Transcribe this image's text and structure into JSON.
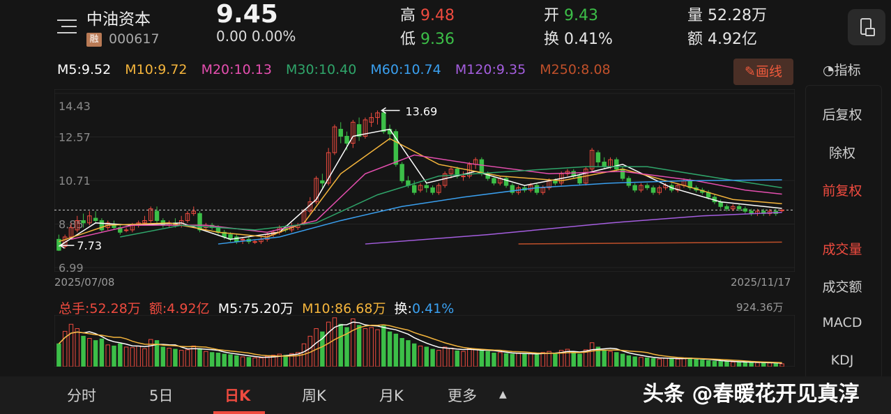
{
  "header": {
    "stock_name": "中油资本",
    "margin_badge": "融",
    "code": "000617",
    "price": "9.45",
    "change": "0.00  0.00%",
    "high_label": "高",
    "high_value": "9.48",
    "low_label": "低",
    "low_value": "9.36",
    "open_label": "开",
    "open_value": "9.43",
    "turnover_label": "换",
    "turnover_value": "0.41%",
    "volume_label": "量",
    "volume_value": "52.28万",
    "amount_label": "额",
    "amount_value": "4.92亿",
    "icon": "phone-landscape-icon",
    "menu_icon": "menu-icon"
  },
  "ma_legend": {
    "m5": "M5:9.52",
    "m10": "M10:9.72",
    "m20": "M20:10.13",
    "m30": "M30:10.40",
    "m60": "M60:10.74",
    "m120": "M120:9.35",
    "m250": "M250:8.08"
  },
  "draw_button": "画线",
  "indicator_label": "指标",
  "side_menu": {
    "items": [
      "后复权",
      "除权",
      "前复权",
      "成交量",
      "成交额",
      "MACD",
      "KDJ"
    ],
    "active": [
      "前复权",
      "成交量"
    ]
  },
  "volume_legend": {
    "total": "总手:52.28万",
    "amount": "额:4.92亿",
    "m5": "M5:75.20万",
    "m10": "M10:86.68万",
    "turnover_label": "换:",
    "turnover_value": "0.41%",
    "max": "924.36万"
  },
  "bottom_tabs": [
    "分时",
    "5日",
    "日K",
    "周K",
    "月K",
    "更多"
  ],
  "active_tab": "日K",
  "watermark": "头条 @春暖花开见真淳",
  "colors": {
    "up": "#ef4b3f",
    "down": "#3cbf48",
    "m5": "#ffffff",
    "m10": "#f5b53c",
    "m20": "#e64fb0",
    "m30": "#2fa56a",
    "m60": "#3aa0f0",
    "m120": "#a55ee0",
    "m250": "#c0502a"
  },
  "chart_data": {
    "type": "candlestick",
    "x_start": "2025/07/08",
    "x_end": "2025/11/17",
    "y_ticks": [
      "14.43",
      "12.57",
      "10.71",
      "8.85",
      "6.99"
    ],
    "ylim": [
      6.99,
      14.43
    ],
    "annotations": {
      "max": "13.69",
      "min": "7.73"
    },
    "last_close": 9.45,
    "ohlc": [
      [
        8.2,
        7.73,
        8.4,
        7.7
      ],
      [
        7.9,
        8.3,
        8.4,
        7.8
      ],
      [
        8.3,
        8.7,
        8.9,
        8.2
      ],
      [
        8.6,
        9.0,
        9.2,
        8.5
      ],
      [
        9.0,
        8.9,
        9.3,
        8.7
      ],
      [
        8.9,
        9.2,
        9.4,
        8.8
      ],
      [
        9.1,
        9.0,
        9.4,
        8.9
      ],
      [
        9.0,
        8.6,
        9.1,
        8.5
      ],
      [
        8.7,
        8.9,
        9.0,
        8.6
      ],
      [
        8.8,
        8.7,
        9.0,
        8.6
      ],
      [
        8.7,
        8.5,
        8.8,
        8.4
      ],
      [
        8.6,
        8.6,
        8.7,
        8.5
      ],
      [
        8.6,
        8.8,
        8.9,
        8.5
      ],
      [
        8.8,
        8.9,
        9.0,
        8.7
      ],
      [
        8.9,
        9.0,
        9.2,
        8.8
      ],
      [
        9.0,
        9.5,
        9.6,
        8.9
      ],
      [
        9.4,
        9.0,
        9.6,
        8.9
      ],
      [
        9.0,
        8.8,
        9.1,
        8.7
      ],
      [
        8.8,
        8.9,
        9.0,
        8.7
      ],
      [
        8.9,
        8.8,
        9.1,
        8.7
      ],
      [
        8.8,
        9.0,
        9.2,
        8.7
      ],
      [
        9.0,
        9.3,
        9.4,
        8.9
      ],
      [
        9.3,
        9.4,
        9.6,
        9.2
      ],
      [
        9.3,
        8.6,
        9.4,
        8.5
      ],
      [
        8.7,
        8.8,
        8.9,
        8.6
      ],
      [
        8.8,
        8.7,
        8.9,
        8.6
      ],
      [
        8.7,
        8.5,
        8.8,
        8.4
      ],
      [
        8.5,
        8.3,
        8.6,
        8.2
      ],
      [
        8.4,
        8.2,
        8.5,
        8.1
      ],
      [
        8.3,
        8.1,
        8.4,
        8.0
      ],
      [
        8.2,
        8.2,
        8.3,
        8.0
      ],
      [
        8.2,
        8.1,
        8.3,
        8.0
      ],
      [
        8.1,
        8.1,
        8.2,
        8.0
      ],
      [
        8.1,
        8.2,
        8.3,
        8.0
      ],
      [
        8.2,
        8.4,
        8.5,
        8.1
      ],
      [
        8.4,
        8.5,
        8.6,
        8.3
      ],
      [
        8.5,
        8.7,
        8.8,
        8.4
      ],
      [
        8.7,
        8.6,
        8.8,
        8.5
      ],
      [
        8.6,
        8.7,
        8.9,
        8.5
      ],
      [
        8.7,
        8.8,
        8.9,
        8.6
      ],
      [
        8.9,
        9.4,
        9.5,
        8.8
      ],
      [
        9.4,
        9.8,
        10.0,
        9.3
      ],
      [
        9.8,
        10.8,
        10.9,
        9.7
      ],
      [
        10.7,
        10.6,
        11.0,
        10.4
      ],
      [
        10.6,
        11.9,
        12.1,
        10.5
      ],
      [
        11.9,
        13.0,
        13.1,
        11.8
      ],
      [
        12.9,
        12.6,
        13.2,
        12.3
      ],
      [
        12.6,
        12.3,
        12.8,
        12.0
      ],
      [
        12.3,
        13.2,
        13.3,
        12.1
      ],
      [
        13.1,
        12.6,
        13.4,
        12.4
      ],
      [
        12.6,
        13.3,
        13.4,
        12.5
      ],
      [
        13.2,
        13.4,
        13.6,
        13.0
      ],
      [
        13.4,
        13.6,
        13.7,
        13.1
      ],
      [
        13.6,
        12.8,
        13.69,
        12.7
      ],
      [
        12.9,
        12.7,
        13.1,
        12.4
      ],
      [
        12.8,
        11.4,
        12.9,
        11.3
      ],
      [
        11.4,
        10.7,
        11.5,
        10.6
      ],
      [
        10.7,
        10.5,
        10.9,
        10.4
      ],
      [
        10.5,
        10.2,
        10.7,
        10.1
      ],
      [
        10.3,
        10.5,
        10.6,
        10.2
      ],
      [
        10.5,
        10.4,
        10.6,
        10.2
      ],
      [
        10.4,
        10.2,
        10.5,
        10.1
      ],
      [
        10.2,
        10.5,
        10.6,
        10.1
      ],
      [
        10.5,
        11.0,
        11.1,
        10.4
      ],
      [
        11.0,
        11.2,
        11.3,
        10.8
      ],
      [
        11.2,
        10.9,
        11.3,
        10.8
      ],
      [
        10.9,
        10.9,
        11.1,
        10.7
      ],
      [
        10.9,
        11.4,
        11.5,
        10.8
      ],
      [
        11.4,
        11.6,
        11.7,
        11.2
      ],
      [
        11.6,
        11.0,
        11.7,
        10.9
      ],
      [
        11.0,
        10.8,
        11.1,
        10.7
      ],
      [
        10.8,
        10.6,
        10.9,
        10.5
      ],
      [
        10.6,
        10.8,
        10.9,
        10.5
      ],
      [
        10.8,
        10.5,
        10.9,
        10.4
      ],
      [
        10.5,
        10.2,
        10.6,
        10.1
      ],
      [
        10.2,
        10.4,
        10.5,
        10.1
      ],
      [
        10.4,
        10.3,
        10.5,
        10.2
      ],
      [
        10.3,
        10.5,
        10.6,
        10.2
      ],
      [
        10.5,
        10.2,
        10.6,
        10.1
      ],
      [
        10.2,
        10.4,
        10.5,
        10.1
      ],
      [
        10.4,
        10.7,
        10.8,
        10.3
      ],
      [
        10.7,
        10.6,
        10.8,
        10.5
      ],
      [
        10.6,
        11.0,
        11.1,
        10.5
      ],
      [
        11.0,
        11.1,
        11.2,
        10.9
      ],
      [
        11.1,
        10.9,
        11.2,
        10.8
      ],
      [
        10.9,
        10.6,
        11.0,
        10.5
      ],
      [
        10.6,
        11.2,
        11.3,
        10.5
      ],
      [
        11.2,
        12.0,
        12.1,
        11.1
      ],
      [
        11.9,
        11.5,
        12.0,
        11.3
      ],
      [
        11.5,
        11.3,
        11.7,
        11.2
      ],
      [
        11.3,
        11.6,
        11.7,
        11.2
      ],
      [
        11.6,
        11.2,
        11.7,
        11.1
      ],
      [
        11.2,
        10.8,
        11.3,
        10.7
      ],
      [
        10.8,
        10.5,
        10.9,
        10.4
      ],
      [
        10.5,
        10.3,
        10.6,
        10.2
      ],
      [
        10.3,
        10.5,
        10.6,
        10.2
      ],
      [
        10.5,
        10.4,
        10.6,
        10.3
      ],
      [
        10.4,
        10.2,
        10.5,
        10.1
      ],
      [
        10.2,
        10.4,
        10.5,
        10.1
      ],
      [
        10.4,
        10.5,
        10.6,
        10.3
      ],
      [
        10.5,
        10.3,
        10.6,
        10.2
      ],
      [
        10.3,
        10.5,
        10.6,
        10.2
      ],
      [
        10.5,
        10.7,
        10.8,
        10.4
      ],
      [
        10.7,
        10.4,
        10.8,
        10.3
      ],
      [
        10.4,
        10.3,
        10.5,
        10.2
      ],
      [
        10.3,
        10.2,
        10.4,
        10.1
      ],
      [
        10.2,
        10.0,
        10.3,
        9.9
      ],
      [
        10.0,
        9.8,
        10.1,
        9.7
      ],
      [
        9.8,
        9.6,
        9.9,
        9.5
      ],
      [
        9.6,
        9.5,
        9.7,
        9.4
      ],
      [
        9.5,
        9.6,
        9.7,
        9.4
      ],
      [
        9.6,
        9.5,
        9.7,
        9.4
      ],
      [
        9.5,
        9.4,
        9.6,
        9.3
      ],
      [
        9.4,
        9.3,
        9.5,
        9.2
      ],
      [
        9.3,
        9.4,
        9.5,
        9.2
      ],
      [
        9.4,
        9.3,
        9.5,
        9.2
      ],
      [
        9.3,
        9.4,
        9.5,
        9.2
      ],
      [
        9.4,
        9.3,
        9.5,
        9.2
      ],
      [
        9.43,
        9.45,
        9.48,
        9.36
      ]
    ],
    "ma_series": {
      "M5": [
        [
          0,
          7.9
        ],
        [
          6,
          8.9
        ],
        [
          12,
          8.8
        ],
        [
          20,
          8.9
        ],
        [
          28,
          8.2
        ],
        [
          36,
          8.5
        ],
        [
          42,
          9.9
        ],
        [
          48,
          12.6
        ],
        [
          54,
          12.9
        ],
        [
          60,
          10.6
        ],
        [
          68,
          11.1
        ],
        [
          76,
          10.5
        ],
        [
          84,
          10.9
        ],
        [
          92,
          11.4
        ],
        [
          100,
          10.4
        ],
        [
          108,
          9.8
        ],
        [
          118,
          9.52
        ]
      ],
      "M10": [
        [
          0,
          8.1
        ],
        [
          8,
          8.8
        ],
        [
          18,
          8.9
        ],
        [
          26,
          8.5
        ],
        [
          34,
          8.3
        ],
        [
          40,
          8.9
        ],
        [
          46,
          11.0
        ],
        [
          54,
          12.5
        ],
        [
          62,
          11.4
        ],
        [
          72,
          10.9
        ],
        [
          82,
          10.7
        ],
        [
          92,
          11.2
        ],
        [
          102,
          10.5
        ],
        [
          110,
          9.9
        ],
        [
          118,
          9.72
        ]
      ],
      "M20": [
        [
          2,
          8.2
        ],
        [
          12,
          8.8
        ],
        [
          24,
          8.8
        ],
        [
          34,
          8.5
        ],
        [
          42,
          9.0
        ],
        [
          50,
          11.0
        ],
        [
          58,
          11.8
        ],
        [
          68,
          11.4
        ],
        [
          80,
          11.0
        ],
        [
          92,
          11.1
        ],
        [
          104,
          10.7
        ],
        [
          112,
          10.3
        ],
        [
          118,
          10.13
        ]
      ],
      "M30": [
        [
          10,
          8.3
        ],
        [
          20,
          8.8
        ],
        [
          32,
          8.6
        ],
        [
          42,
          8.9
        ],
        [
          52,
          10.1
        ],
        [
          62,
          10.9
        ],
        [
          74,
          11.1
        ],
        [
          86,
          11.3
        ],
        [
          96,
          11.3
        ],
        [
          108,
          10.8
        ],
        [
          118,
          10.4
        ]
      ],
      "M60": [
        [
          26,
          8.0
        ],
        [
          36,
          8.3
        ],
        [
          46,
          9.0
        ],
        [
          56,
          9.6
        ],
        [
          66,
          10.0
        ],
        [
          78,
          10.4
        ],
        [
          90,
          10.6
        ],
        [
          102,
          10.7
        ],
        [
          118,
          10.74
        ]
      ],
      "M120": [
        [
          50,
          8.0
        ],
        [
          70,
          8.4
        ],
        [
          90,
          8.9
        ],
        [
          105,
          9.2
        ],
        [
          118,
          9.35
        ]
      ],
      "M250": [
        [
          75,
          8.0
        ],
        [
          95,
          8.04
        ],
        [
          118,
          8.08
        ]
      ]
    },
    "volume": [
      420,
      650,
      780,
      700,
      560,
      520,
      480,
      510,
      400,
      380,
      420,
      360,
      350,
      380,
      330,
      500,
      480,
      360,
      340,
      320,
      300,
      310,
      380,
      330,
      280,
      260,
      250,
      230,
      220,
      200,
      180,
      170,
      160,
      160,
      190,
      210,
      230,
      210,
      240,
      260,
      420,
      560,
      700,
      640,
      820,
      900,
      780,
      720,
      880,
      760,
      700,
      720,
      680,
      750,
      640,
      600,
      520,
      480,
      420,
      380,
      360,
      320,
      300,
      360,
      340,
      290,
      280,
      330,
      320,
      300,
      280,
      250,
      260,
      240,
      230,
      250,
      230,
      240,
      220,
      260,
      280,
      240,
      300,
      320,
      260,
      230,
      310,
      440,
      360,
      300,
      280,
      260,
      230,
      200,
      180,
      170,
      160,
      150,
      140,
      160,
      150,
      140,
      150,
      160,
      130,
      120,
      110,
      100,
      95,
      90,
      85,
      80,
      78,
      75,
      72,
      70,
      68,
      60,
      52
    ],
    "vol_max": 924.36
  }
}
